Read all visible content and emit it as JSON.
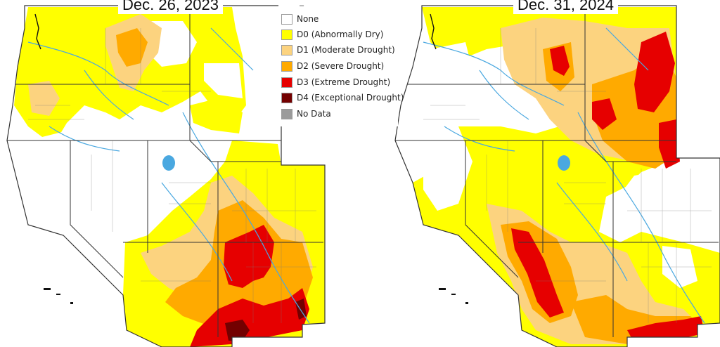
{
  "maps": {
    "left": {
      "date": "Dec. 26, 2023"
    },
    "right": {
      "date": "Dec. 31, 2024"
    }
  },
  "legend": {
    "dash": "–",
    "items": [
      {
        "key": "none",
        "label": "None",
        "color": "#ffffff"
      },
      {
        "key": "d0",
        "label": "D0 (Abnormally Dry)",
        "color": "#ffff00"
      },
      {
        "key": "d1",
        "label": "D1 (Moderate Drought)",
        "color": "#fcd37f"
      },
      {
        "key": "d2",
        "label": "D2 (Severe Drought)",
        "color": "#ffaa00"
      },
      {
        "key": "d3",
        "label": "D3 (Extreme Drought)",
        "color": "#e60000"
      },
      {
        "key": "d4",
        "label": "D4 (Exceptional Drought)",
        "color": "#730000"
      },
      {
        "key": "nodata",
        "label": "No Data",
        "color": "#9b9b9b"
      }
    ]
  },
  "colors": {
    "rivers": "#4aa8e0",
    "boundaries": "#333333",
    "counties": "#7a7a7a"
  }
}
